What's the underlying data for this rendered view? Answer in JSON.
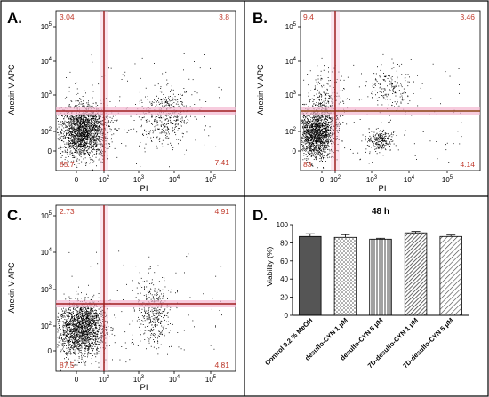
{
  "panels": [
    {
      "letter": "A.",
      "type": "scatter",
      "xlabel": "PI",
      "ylabel": "Anexin V-APC",
      "x_ticks": [
        "0",
        "10^2",
        "10^3",
        "10^4",
        "10^5"
      ],
      "y_ticks": [
        "0",
        "10^2",
        "10^3",
        "10^4",
        "10^5"
      ],
      "gate": {
        "x_threshold_label": "~10^2",
        "y_threshold_label": "~10^2.5"
      },
      "quadrant_percentages": {
        "upper_left": "3.04",
        "upper_right": "3.8",
        "lower_left": "85.7",
        "lower_right": "7.41"
      }
    },
    {
      "letter": "B.",
      "type": "scatter",
      "xlabel": "PI",
      "ylabel": "Anexin V-APC",
      "x_ticks": [
        "0",
        "10^2",
        "10^3",
        "10^4",
        "10^5"
      ],
      "y_ticks": [
        "0",
        "10^2",
        "10^3",
        "10^4",
        "10^5"
      ],
      "quadrant_percentages": {
        "upper_left": "9.4",
        "upper_right": "3.46",
        "lower_left": "83",
        "lower_right": "4.14"
      }
    },
    {
      "letter": "C.",
      "type": "scatter",
      "xlabel": "PI",
      "ylabel": "Anexin V-APC",
      "x_ticks": [
        "0",
        "10^2",
        "10^3",
        "10^4",
        "10^5"
      ],
      "y_ticks": [
        "0",
        "10^2",
        "10^3",
        "10^4",
        "10^5"
      ],
      "quadrant_percentages": {
        "upper_left": "2.73",
        "upper_right": "4.91",
        "lower_left": "87.5",
        "lower_right": "4.81"
      }
    }
  ],
  "chart_data": {
    "type": "bar",
    "letter": "D.",
    "title": "48 h",
    "ylabel": "Viability (%)",
    "ylim": [
      0,
      100
    ],
    "y_ticks": [
      0,
      20,
      40,
      60,
      80,
      100
    ],
    "categories": [
      "Control 0.2 % MeOH",
      "desulfo-CYN 1 μM",
      "desulfo-CYN 5 μM",
      "7D-desulfo-CYN 1 μM",
      "7D-desulfo-CYN 5 μM"
    ],
    "values": [
      87,
      86,
      84,
      91,
      87
    ],
    "errors": [
      3,
      3,
      1,
      1.5,
      1.5
    ],
    "fills": [
      "solid-dark",
      "dots",
      "vertical-lines",
      "diagonal-lines-dense",
      "diagonal-lines"
    ]
  },
  "colors": {
    "gate_line": "#a02020",
    "pink_band": "#f4b6d0",
    "quadrant_text": "#c0392b",
    "dots": "#000000",
    "bar_dark": "#555555",
    "frame": "#000000"
  }
}
